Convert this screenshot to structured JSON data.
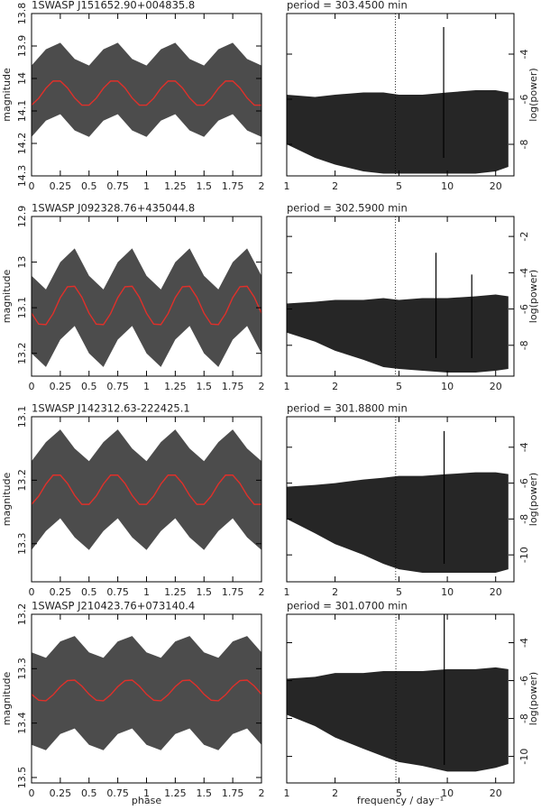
{
  "chart_data": [
    {
      "type": "scatter",
      "title": "1SWASP J151652.90+004835.8",
      "ylabel": "magnitude",
      "xlim": [
        0,
        2
      ],
      "xticks": [
        0,
        0.25,
        0.5,
        0.75,
        1,
        1.25,
        1.5,
        1.75,
        2
      ],
      "ylim": [
        13.8,
        14.3
      ],
      "yticks": [
        13.8,
        13.9,
        14,
        14.1,
        14.2,
        14.3
      ],
      "y_inverted": true,
      "point_color": "#000000",
      "line_color": "#e0302a",
      "x": [
        0,
        0.0625,
        0.125,
        0.1875,
        0.25,
        0.3125,
        0.375,
        0.4375,
        0.5,
        0.5625,
        0.625,
        0.6875,
        0.75,
        0.8125,
        0.875,
        0.9375,
        1,
        1.0625,
        1.125,
        1.1875,
        1.25,
        1.3125,
        1.375,
        1.4375,
        1.5,
        1.5625,
        1.625,
        1.6875,
        1.75,
        1.8125,
        1.875,
        1.9375,
        2
      ],
      "binned": [
        14.082,
        14.061,
        14.03,
        14.008,
        14.008,
        14.029,
        14.06,
        14.082,
        14.082,
        14.061,
        14.03,
        14.008,
        14.008,
        14.029,
        14.06,
        14.082,
        14.082,
        14.061,
        14.03,
        14.008,
        14.008,
        14.029,
        14.06,
        14.082,
        14.082,
        14.061,
        14.03,
        14.008,
        14.008,
        14.029,
        14.06,
        14.082,
        14.082
      ],
      "band_x": [
        0,
        0.125,
        0.25,
        0.375,
        0.5,
        0.625,
        0.75,
        0.875,
        1,
        1.125,
        1.25,
        1.375,
        1.5,
        1.625,
        1.75,
        1.875,
        2
      ],
      "band_low": [
        13.96,
        13.91,
        13.89,
        13.94,
        13.96,
        13.91,
        13.89,
        13.94,
        13.96,
        13.91,
        13.89,
        13.94,
        13.96,
        13.91,
        13.89,
        13.94,
        13.96
      ],
      "band_high": [
        14.18,
        14.13,
        14.11,
        14.16,
        14.18,
        14.13,
        14.11,
        14.16,
        14.18,
        14.13,
        14.11,
        14.16,
        14.18,
        14.13,
        14.11,
        14.16,
        14.18
      ]
    },
    {
      "type": "periodogram",
      "title": "period = 303.4500 min",
      "ylabel": "log(power)",
      "xlim": [
        1,
        26
      ],
      "xticks": [
        1,
        2,
        5,
        10,
        20
      ],
      "x_log": true,
      "ylim": [
        -9.4,
        -2.2
      ],
      "yticks": [
        -4,
        -6,
        -8
      ],
      "line_color": "#000000",
      "marker_x": 4.745,
      "band_x": [
        1,
        1.5,
        2,
        3,
        4,
        5,
        7,
        10,
        15,
        20,
        24
      ],
      "band_high": [
        -5.8,
        -5.9,
        -5.8,
        -5.7,
        -5.7,
        -5.8,
        -5.8,
        -5.7,
        -5.6,
        -5.6,
        -5.7
      ],
      "band_low": [
        -8.0,
        -8.6,
        -8.9,
        -9.2,
        -9.3,
        -9.3,
        -9.3,
        -9.3,
        -9.3,
        -9.2,
        -9.0
      ],
      "peak_x": [
        9.49
      ],
      "peak_values": [
        -2.8
      ]
    },
    {
      "type": "scatter",
      "title": "1SWASP J092328.76+435044.8",
      "ylabel": "magnitude",
      "xlim": [
        0,
        2
      ],
      "xticks": [
        0,
        0.25,
        0.5,
        0.75,
        1,
        1.25,
        1.5,
        1.75,
        2
      ],
      "ylim": [
        12.9,
        13.25
      ],
      "yticks": [
        12.9,
        13,
        13.1,
        13.2
      ],
      "y_inverted": true,
      "point_color": "#000000",
      "line_color": "#e0302a",
      "x": [
        0,
        0.0625,
        0.125,
        0.1875,
        0.25,
        0.3125,
        0.375,
        0.4375,
        0.5,
        0.5625,
        0.625,
        0.6875,
        0.75,
        0.8125,
        0.875,
        0.9375,
        1,
        1.0625,
        1.125,
        1.1875,
        1.25,
        1.3125,
        1.375,
        1.4375,
        1.5,
        1.5625,
        1.625,
        1.6875,
        1.75,
        1.8125,
        1.875,
        1.9375,
        2
      ],
      "binned": [
        13.112,
        13.136,
        13.137,
        13.113,
        13.078,
        13.054,
        13.053,
        13.077,
        13.112,
        13.136,
        13.137,
        13.113,
        13.078,
        13.054,
        13.053,
        13.077,
        13.112,
        13.136,
        13.137,
        13.113,
        13.078,
        13.054,
        13.053,
        13.077,
        13.112,
        13.136,
        13.137,
        13.113,
        13.078,
        13.054,
        13.053,
        13.077,
        13.112
      ],
      "band_x": [
        0,
        0.125,
        0.25,
        0.375,
        0.5,
        0.625,
        0.75,
        0.875,
        1,
        1.125,
        1.25,
        1.375,
        1.5,
        1.625,
        1.75,
        1.875,
        2
      ],
      "band_low": [
        13.03,
        13.06,
        13.0,
        12.97,
        13.03,
        13.06,
        13.0,
        12.97,
        13.03,
        13.06,
        13.0,
        12.97,
        13.03,
        13.06,
        13.0,
        12.97,
        13.03
      ],
      "band_high": [
        13.2,
        13.23,
        13.17,
        13.14,
        13.2,
        13.23,
        13.17,
        13.14,
        13.2,
        13.23,
        13.17,
        13.14,
        13.2,
        13.23,
        13.17,
        13.14,
        13.2
      ]
    },
    {
      "type": "periodogram",
      "title": "period = 302.5900 min",
      "ylabel": "log(power)",
      "xlim": [
        1,
        26
      ],
      "xticks": [
        1,
        2,
        5,
        10,
        20
      ],
      "x_log": true,
      "ylim": [
        -9.7,
        -0.9
      ],
      "yticks": [
        -2,
        -4,
        -6,
        -8
      ],
      "line_color": "#000000",
      "marker_x": 4.759,
      "band_x": [
        1,
        1.5,
        2,
        3,
        4,
        5,
        7,
        10,
        15,
        20,
        24
      ],
      "band_high": [
        -5.7,
        -5.6,
        -5.5,
        -5.5,
        -5.4,
        -5.5,
        -5.4,
        -5.4,
        -5.3,
        -5.2,
        -5.3
      ],
      "band_low": [
        -7.3,
        -7.8,
        -8.3,
        -8.8,
        -9.2,
        -9.3,
        -9.4,
        -9.5,
        -9.5,
        -9.4,
        -9.3
      ],
      "peak_x": [
        8.5,
        14.2
      ],
      "peak_values": [
        -2.9,
        -4.1
      ]
    },
    {
      "type": "scatter",
      "title": "1SWASP J142312.63-222425.1",
      "ylabel": "magnitude",
      "xlim": [
        0,
        2
      ],
      "xticks": [
        0,
        0.25,
        0.5,
        0.75,
        1,
        1.25,
        1.5,
        1.75,
        2
      ],
      "ylim": [
        13.1,
        13.36
      ],
      "yticks": [
        13.1,
        13.2,
        13.3
      ],
      "y_inverted": true,
      "point_color": "#000000",
      "line_color": "#e0302a",
      "x": [
        0,
        0.0625,
        0.125,
        0.1875,
        0.25,
        0.3125,
        0.375,
        0.4375,
        0.5,
        0.5625,
        0.625,
        0.6875,
        0.75,
        0.8125,
        0.875,
        0.9375,
        1,
        1.0625,
        1.125,
        1.1875,
        1.25,
        1.3125,
        1.375,
        1.4375,
        1.5,
        1.5625,
        1.625,
        1.6875,
        1.75,
        1.8125,
        1.875,
        1.9375,
        2
      ],
      "binned": [
        13.238,
        13.225,
        13.206,
        13.192,
        13.192,
        13.205,
        13.224,
        13.238,
        13.238,
        13.225,
        13.206,
        13.192,
        13.192,
        13.205,
        13.224,
        13.238,
        13.238,
        13.225,
        13.206,
        13.192,
        13.192,
        13.205,
        13.224,
        13.238,
        13.238,
        13.225,
        13.206,
        13.192,
        13.192,
        13.205,
        13.224,
        13.238,
        13.238
      ],
      "band_x": [
        0,
        0.125,
        0.25,
        0.375,
        0.5,
        0.625,
        0.75,
        0.875,
        1,
        1.125,
        1.25,
        1.375,
        1.5,
        1.625,
        1.75,
        1.875,
        2
      ],
      "band_low": [
        13.17,
        13.14,
        13.12,
        13.15,
        13.17,
        13.14,
        13.12,
        13.15,
        13.17,
        13.14,
        13.12,
        13.15,
        13.17,
        13.14,
        13.12,
        13.15,
        13.17
      ],
      "band_high": [
        13.31,
        13.28,
        13.26,
        13.29,
        13.31,
        13.28,
        13.26,
        13.29,
        13.31,
        13.28,
        13.26,
        13.29,
        13.31,
        13.28,
        13.26,
        13.29,
        13.31
      ]
    },
    {
      "type": "periodogram",
      "title": "period = 301.8800 min",
      "ylabel": "log(power)",
      "xlim": [
        1,
        26
      ],
      "xticks": [
        1,
        2,
        5,
        10,
        20
      ],
      "x_log": true,
      "ylim": [
        -11.5,
        -2.3
      ],
      "yticks": [
        -4,
        -6,
        -8,
        -10
      ],
      "line_color": "#000000",
      "marker_x": 4.77,
      "band_x": [
        1,
        1.5,
        2,
        3,
        4,
        5,
        7,
        10,
        15,
        20,
        24
      ],
      "band_high": [
        -6.2,
        -6.1,
        -6.0,
        -5.8,
        -5.7,
        -5.6,
        -5.6,
        -5.5,
        -5.4,
        -5.4,
        -5.5
      ],
      "band_low": [
        -8.0,
        -8.8,
        -9.4,
        -10,
        -10.5,
        -10.8,
        -11,
        -11,
        -11,
        -11,
        -10.8
      ],
      "peak_x": [
        9.55
      ],
      "peak_values": [
        -3.1
      ]
    },
    {
      "type": "scatter",
      "title": "1SWASP J210423.76+073140.4",
      "ylabel": "magnitude",
      "xlabel": "phase",
      "xlim": [
        0,
        2
      ],
      "xticks": [
        0,
        0.25,
        0.5,
        0.75,
        1,
        1.25,
        1.5,
        1.75,
        2
      ],
      "ylim": [
        13.2,
        13.51
      ],
      "yticks": [
        13.2,
        13.3,
        13.4,
        13.5
      ],
      "y_inverted": true,
      "point_color": "#000000",
      "line_color": "#e0302a",
      "x": [
        0,
        0.0625,
        0.125,
        0.1875,
        0.25,
        0.3125,
        0.375,
        0.4375,
        0.5,
        0.5625,
        0.625,
        0.6875,
        0.75,
        0.8125,
        0.875,
        0.9375,
        1,
        1.0625,
        1.125,
        1.1875,
        1.25,
        1.3125,
        1.375,
        1.4375,
        1.5,
        1.5625,
        1.625,
        1.6875,
        1.75,
        1.8125,
        1.875,
        1.9375,
        2
      ],
      "binned": [
        13.347,
        13.358,
        13.359,
        13.348,
        13.333,
        13.322,
        13.321,
        13.332,
        13.347,
        13.358,
        13.359,
        13.348,
        13.333,
        13.322,
        13.321,
        13.332,
        13.347,
        13.358,
        13.359,
        13.348,
        13.333,
        13.322,
        13.321,
        13.332,
        13.347,
        13.358,
        13.359,
        13.348,
        13.333,
        13.322,
        13.321,
        13.332,
        13.347
      ],
      "band_x": [
        0,
        0.125,
        0.25,
        0.375,
        0.5,
        0.625,
        0.75,
        0.875,
        1,
        1.125,
        1.25,
        1.375,
        1.5,
        1.625,
        1.75,
        1.875,
        2
      ],
      "band_low": [
        13.27,
        13.28,
        13.25,
        13.24,
        13.27,
        13.28,
        13.25,
        13.24,
        13.27,
        13.28,
        13.25,
        13.24,
        13.27,
        13.28,
        13.25,
        13.24,
        13.27
      ],
      "band_high": [
        13.44,
        13.45,
        13.42,
        13.41,
        13.44,
        13.45,
        13.42,
        13.41,
        13.44,
        13.45,
        13.42,
        13.41,
        13.44,
        13.45,
        13.42,
        13.41,
        13.44
      ]
    },
    {
      "type": "periodogram",
      "title": "period = 301.0700 min",
      "ylabel": "log(power)",
      "xlabel": "frequency / day⁻¹",
      "xlim": [
        1,
        26
      ],
      "xticks": [
        1,
        2,
        5,
        10,
        20
      ],
      "x_log": true,
      "ylim": [
        -11.4,
        -2.5
      ],
      "yticks": [
        -4,
        -6,
        -8,
        -10
      ],
      "line_color": "#000000",
      "marker_x": 4.783,
      "band_x": [
        1,
        1.5,
        2,
        3,
        4,
        5,
        7,
        10,
        15,
        20,
        24
      ],
      "band_high": [
        -5.9,
        -5.8,
        -5.6,
        -5.6,
        -5.5,
        -5.5,
        -5.5,
        -5.4,
        -5.4,
        -5.3,
        -5.4
      ],
      "band_low": [
        -7.8,
        -8.4,
        -9.0,
        -9.6,
        -10,
        -10.3,
        -10.5,
        -10.8,
        -10.8,
        -10.6,
        -10.4
      ],
      "peak_x": [
        9.57
      ],
      "peak_values": [
        -2.5
      ]
    }
  ]
}
